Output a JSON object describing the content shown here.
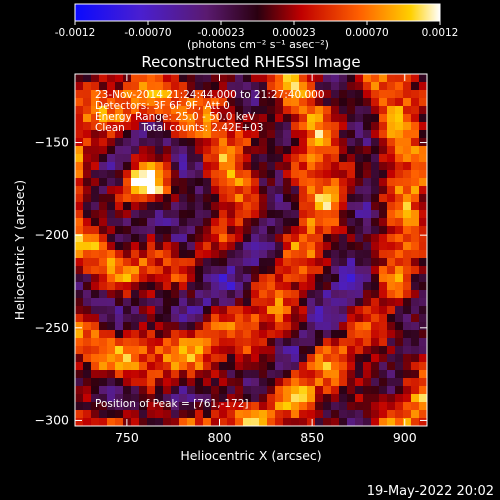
{
  "colorbar": {
    "ticks": [
      "-0.0012",
      "-0.00070",
      "-0.00023",
      "0.00023",
      "0.00070",
      "0.0012"
    ],
    "unit_label": "(photons cm⁻² s⁻¹ asec⁻²)"
  },
  "image": {
    "title": "Reconstructed RHESSI Image",
    "info_lines": [
      "23-Nov-2014 21:24:44.000 to 21:27:40.000",
      "Detectors: 3F 6F 9F, Att 0",
      "Energy Range: 25.0 - 50.0 keV",
      "Clean     Total counts: 2.42E+03"
    ],
    "peak_label": "Position of Peak = [761,-172]",
    "timestamp": "19-May-2022 20:02"
  },
  "chart_data": {
    "type": "heatmap",
    "title": "Reconstructed RHESSI Image",
    "xlabel": "Heliocentric X (arcsec)",
    "ylabel": "Heliocentric Y (arcsec)",
    "xlim": [
      722,
      912
    ],
    "ylim": [
      -303,
      -113
    ],
    "xticks": [
      750,
      800,
      850,
      900
    ],
    "yticks": [
      -150,
      -200,
      -250,
      -300
    ],
    "colorbar_range": [
      -0.0012,
      0.0012
    ],
    "peak": {
      "x": 761,
      "y": -172
    },
    "colormap": "blue-purple-red-orange-yellow-white"
  }
}
